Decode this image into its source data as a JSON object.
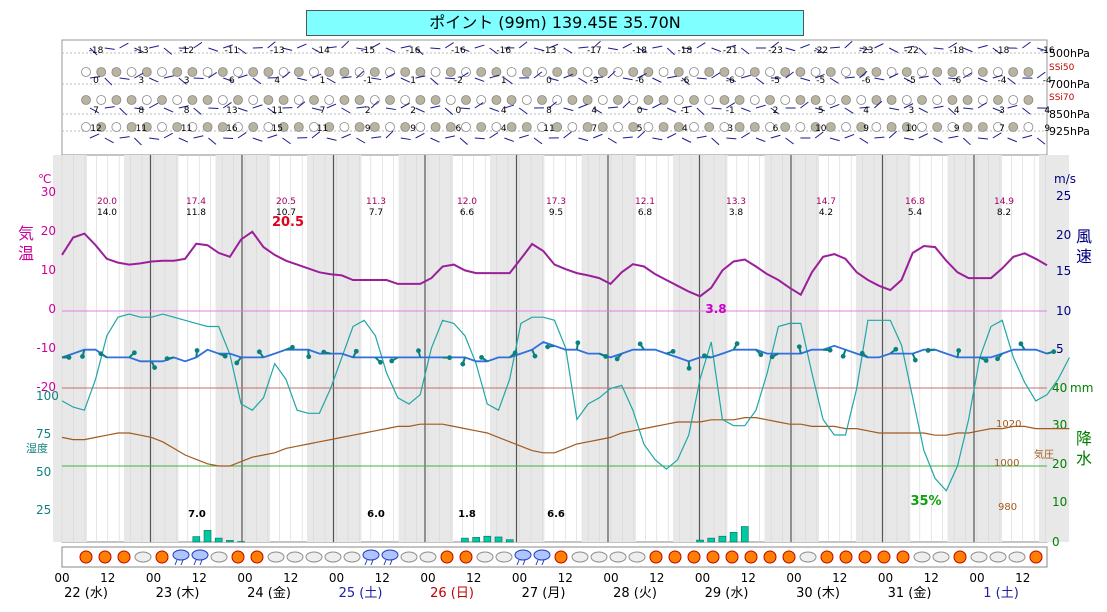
{
  "title": "ポイント (99m)  139.45E  35.70N",
  "chart_data": {
    "type": "line",
    "time_axis": {
      "hour_labels": [
        "00",
        "12",
        "00",
        "12",
        "00",
        "12",
        "00",
        "12",
        "00",
        "12",
        "00",
        "12",
        "00",
        "12",
        "00",
        "12",
        "00",
        "12",
        "00",
        "12",
        "00",
        "12",
        "00",
        "12",
        "00",
        "12"
      ],
      "day_labels": [
        "22 (水)",
        "23 (木)",
        "24 (金)",
        "25 (土)",
        "26 (日)",
        "27 (月)",
        "28 (火)",
        "29 (水)",
        "30 (木)",
        "31 (金)",
        "1 (土)"
      ],
      "day_colors": [
        "#000000",
        "#000000",
        "#000000",
        "#2020a0",
        "#c00000",
        "#000000",
        "#000000",
        "#000000",
        "#000000",
        "#000000",
        "#2020a0"
      ]
    },
    "upper_air": {
      "levels": [
        "500hPa",
        "700hPa",
        "850hPa",
        "925hPa"
      ],
      "ssi_labels": [
        "SSi50",
        "SSi70"
      ],
      "t500": [
        "-18",
        "-13",
        "-12",
        "-11",
        "-13",
        "-14",
        "-15",
        "-16",
        "-16",
        "-16",
        "-13",
        "-17",
        "-18",
        "-18",
        "-21",
        "-23",
        "-22",
        "-23",
        "-22",
        "-18",
        "-18",
        "-16"
      ],
      "t700": [
        "0",
        "3",
        "3",
        "6",
        "4",
        "1",
        "-1",
        "1",
        "-2",
        "1",
        "0",
        "-3",
        "-6",
        "-6",
        "-6",
        "-5",
        "-5",
        "-6",
        "-5",
        "-6",
        "-4",
        "-4"
      ],
      "t850": [
        "7",
        "8",
        "8",
        "13",
        "11",
        "7",
        "2",
        "2",
        "0",
        "4",
        "8",
        "4",
        "0",
        "-1",
        "-1",
        "2",
        "5",
        "4",
        "3",
        "4",
        "3",
        "4"
      ],
      "t925": [
        "12",
        "11",
        "11",
        "16",
        "15",
        "11",
        "9",
        "9",
        "6",
        "4",
        "11",
        "7",
        "5",
        "4",
        "3",
        "6",
        "10",
        "9",
        "10",
        "9",
        "7",
        "9"
      ]
    },
    "temperature": {
      "label": "気温",
      "unit": "℃",
      "ylim": [
        -20,
        30
      ],
      "ticks": [
        "30",
        "20",
        "10",
        "0",
        "-10",
        "-20"
      ],
      "values": [
        14.5,
        19,
        20,
        17,
        13.5,
        12.5,
        12,
        12.3,
        12.8,
        13,
        13,
        13.5,
        17.4,
        17,
        15,
        14,
        18.5,
        20.5,
        16.5,
        14.5,
        13,
        12,
        11,
        10,
        9.5,
        9.2,
        8,
        8,
        8,
        8,
        7,
        7,
        7,
        8.5,
        11.5,
        12,
        10.5,
        9.8,
        9.8,
        9.8,
        9.8,
        13.5,
        17.3,
        15.5,
        12,
        10.8,
        9.8,
        9.2,
        8.5,
        7,
        10,
        12.1,
        11.5,
        9.5,
        8,
        6.5,
        5,
        3.8,
        6,
        10.5,
        12.8,
        13.3,
        11.5,
        9.5,
        8,
        6,
        4.2,
        10,
        14,
        14.7,
        13.5,
        10,
        8,
        6.5,
        5.4,
        8,
        15,
        16.8,
        16.5,
        13,
        10,
        8.5,
        8.5,
        8.5,
        11,
        14,
        14.9,
        13.5,
        11.8
      ],
      "daily_max": [
        "20.0",
        "17.4",
        "20.5",
        "11.3",
        "12.0",
        "17.3",
        "12.1",
        "13.3",
        "14.7",
        "16.8",
        "14.9"
      ],
      "daily_min": [
        "14.0",
        "11.8",
        "10.7",
        "7.7",
        "6.6",
        "9.5",
        "6.8",
        "3.8",
        "4.2",
        "5.4",
        "8.2"
      ],
      "max_annotation": "20.5",
      "min_annotation": "3.8"
    },
    "wind": {
      "label": "風速",
      "unit": "m/s",
      "ylim": [
        0,
        25
      ],
      "ticks": [
        "25",
        "20",
        "15",
        "10",
        "5"
      ],
      "values": [
        4,
        4.5,
        5,
        5,
        4,
        4,
        4,
        3.5,
        3.5,
        3.5,
        4,
        3.5,
        4,
        5,
        4.5,
        4.5,
        4,
        4,
        4,
        4.5,
        5,
        5,
        5,
        4.5,
        4.5,
        4.5,
        4,
        4,
        4,
        4,
        4,
        4,
        4,
        4,
        4,
        4,
        4,
        3.5,
        3.5,
        4,
        4,
        4.5,
        5,
        6,
        5.5,
        5,
        5,
        4.5,
        4.5,
        4,
        4.5,
        5,
        5,
        5,
        4.5,
        4,
        3.5,
        4,
        4,
        4.5,
        5,
        5,
        5,
        4.5,
        4.5,
        4.5,
        4.5,
        5,
        5,
        5.5,
        5,
        4.5,
        4,
        4,
        4.5,
        4.5,
        4.5,
        5,
        5,
        4.5,
        4,
        4,
        4,
        4,
        4.5,
        5,
        5,
        5,
        4.5
      ]
    },
    "humidity": {
      "label": "湿度",
      "ticks": [
        "100",
        "75",
        "50",
        "25"
      ],
      "min_annotation": "35%",
      "values": [
        71,
        69,
        68,
        78,
        92,
        98,
        99,
        98,
        98,
        99,
        98,
        97,
        96,
        95,
        95,
        86,
        70,
        68,
        72,
        83,
        78,
        68,
        67,
        67,
        75,
        85,
        95,
        97,
        92,
        80,
        72,
        70,
        73,
        88,
        97,
        96,
        92,
        83,
        70,
        68,
        78,
        96,
        98,
        98,
        97,
        88,
        65,
        70,
        72,
        75,
        76,
        68,
        57,
        52,
        49,
        52,
        60,
        78,
        90,
        65,
        63,
        63,
        68,
        80,
        95,
        96,
        96,
        80,
        65,
        60,
        60,
        75,
        97,
        97,
        97,
        89,
        72,
        55,
        46,
        42,
        50,
        65,
        85,
        95,
        97,
        85,
        77,
        71,
        73,
        78,
        85
      ]
    },
    "pressure": {
      "label": "気圧",
      "ticks": [
        "1020",
        "1000",
        "980"
      ],
      "values": [
        1013,
        1012,
        1012,
        1013,
        1014,
        1015,
        1015,
        1014,
        1013,
        1011,
        1008,
        1005,
        1003,
        1001,
        1000,
        1000,
        1002,
        1004,
        1005,
        1006,
        1008,
        1009,
        1010,
        1011,
        1012,
        1013,
        1014,
        1015,
        1016,
        1017,
        1018,
        1018,
        1019,
        1019,
        1019,
        1018,
        1017,
        1016,
        1015,
        1013,
        1011,
        1009,
        1007,
        1006,
        1006,
        1008,
        1010,
        1011,
        1012,
        1013,
        1015,
        1016,
        1017,
        1018,
        1019,
        1020,
        1020,
        1020,
        1021,
        1021,
        1021,
        1022,
        1022,
        1021,
        1020,
        1019,
        1019,
        1018,
        1018,
        1018,
        1017,
        1017,
        1016,
        1015,
        1015,
        1015,
        1015,
        1015,
        1014,
        1014,
        1015,
        1015,
        1016,
        1017,
        1017,
        1018,
        1018,
        1017,
        1017,
        1017,
        1017
      ]
    },
    "precipitation": {
      "label": "降水",
      "unit": "mm",
      "ylim": [
        0,
        40
      ],
      "ticks": [
        "40",
        "30",
        "20",
        "10",
        "0"
      ],
      "values": [
        0,
        0,
        0,
        0,
        0,
        0,
        0,
        0,
        0,
        0,
        0,
        0,
        1.4,
        3,
        1,
        0.4,
        0.1,
        0,
        0,
        0,
        0,
        0,
        0,
        0,
        0,
        0,
        0,
        0,
        0,
        0,
        0,
        0,
        0,
        0,
        0,
        0,
        1,
        1.2,
        1.5,
        1.3,
        0.6,
        0,
        0,
        0,
        0,
        0,
        0,
        0,
        0,
        0,
        0,
        0,
        0,
        0,
        0,
        0,
        0,
        0.5,
        1,
        1.5,
        2.5,
        4,
        0,
        0,
        0,
        0,
        0,
        0,
        0,
        0,
        0,
        0,
        0,
        0,
        0,
        0,
        0,
        0,
        0,
        0,
        0,
        0,
        0,
        0,
        0,
        0,
        0,
        0,
        0
      ],
      "daily_totals": [
        "7.0",
        "6.0",
        "1.8",
        "6.6"
      ]
    },
    "weather_icons": [
      "sun",
      "sun",
      "sun",
      "cloud",
      "sun",
      "rain",
      "rain",
      "cloud",
      "sun",
      "sun",
      "cloud",
      "cloud",
      "cloud",
      "cloud",
      "cloud",
      "rain",
      "rain",
      "cloud",
      "cloud",
      "sun",
      "sun",
      "cloud",
      "cloud",
      "rain",
      "rain",
      "sun",
      "cloud",
      "cloud",
      "cloud",
      "cloud",
      "sun",
      "sun",
      "sun",
      "sun",
      "sun",
      "sun",
      "sun",
      "sun",
      "cloud",
      "sun",
      "sun",
      "sun",
      "sun",
      "sun",
      "cloud",
      "cloud",
      "sun",
      "cloud",
      "cloud",
      "cloud",
      "sun",
      "sun"
    ]
  },
  "colors": {
    "temperature_line": "#9b1f9b",
    "wind_line": "#2f6fde",
    "humidity_line": "#20a6a6",
    "pressure_line": "#a25a1e",
    "precip_bar": "#00c8a0",
    "upper_air_wind": "#1a1a90",
    "axis_temp": "#cc0099",
    "axis_wind": "#000080",
    "axis_precip": "#008000"
  }
}
